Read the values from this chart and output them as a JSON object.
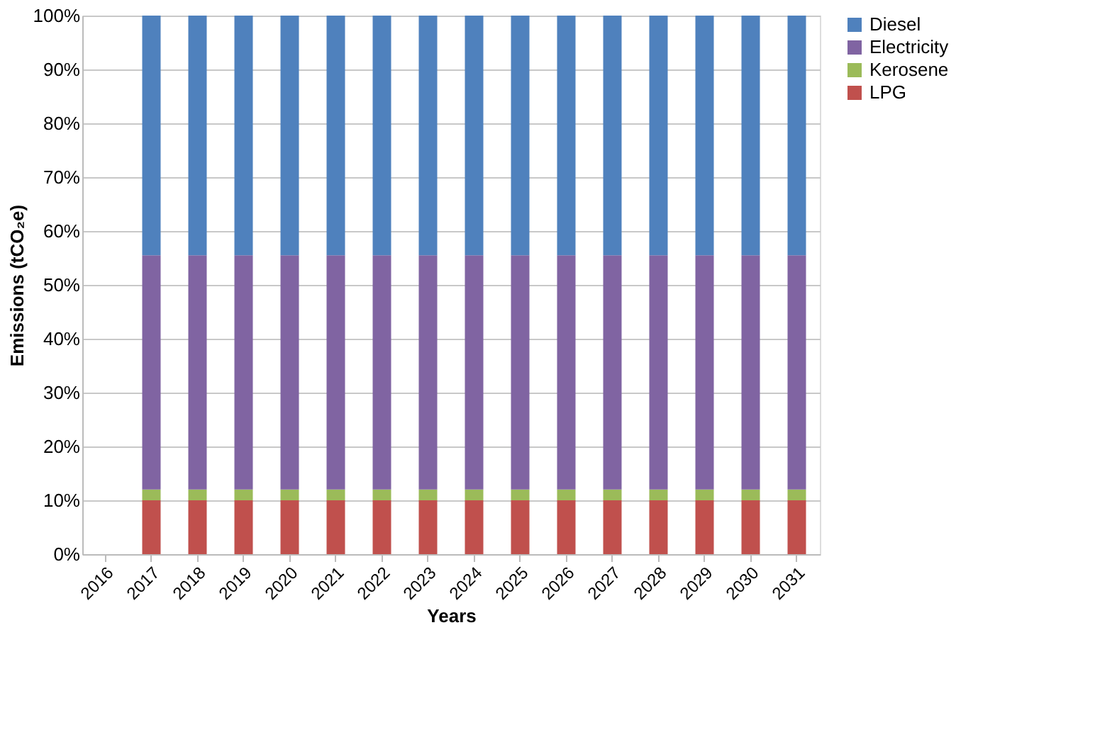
{
  "chart_data": {
    "type": "bar",
    "stacked": true,
    "xlabel": "Years",
    "ylabel": "Emissions (tCO₂e)",
    "categories": [
      "2016",
      "2017",
      "2018",
      "2019",
      "2020",
      "2021",
      "2022",
      "2023",
      "2024",
      "2025",
      "2026",
      "2027",
      "2028",
      "2029",
      "2030",
      "2031"
    ],
    "series": [
      {
        "name": "LPG",
        "color": "#c0504d",
        "values": [
          null,
          10,
          10,
          10,
          10,
          10,
          10,
          10,
          10,
          10,
          10,
          10,
          10,
          10,
          10,
          10
        ]
      },
      {
        "name": "Kerosene",
        "color": "#9bbb59",
        "values": [
          null,
          2,
          2,
          2,
          2,
          2,
          2,
          2,
          2,
          2,
          2,
          2,
          2,
          2,
          2,
          2
        ]
      },
      {
        "name": "Electricity",
        "color": "#8064a2",
        "values": [
          null,
          43.5,
          43.5,
          43.5,
          43.5,
          43.5,
          43.5,
          43.5,
          43.5,
          43.5,
          43.5,
          43.5,
          43.5,
          43.5,
          43.5,
          43.5
        ]
      },
      {
        "name": "Diesel",
        "color": "#4f81bd",
        "values": [
          null,
          44.5,
          44.5,
          44.5,
          44.5,
          44.5,
          44.5,
          44.5,
          44.5,
          44.5,
          44.5,
          44.5,
          44.5,
          44.5,
          44.5,
          44.5
        ]
      }
    ],
    "ylim": [
      0,
      100
    ],
    "yticks": [
      {
        "value": 0,
        "label": "0%"
      },
      {
        "value": 10,
        "label": "10%"
      },
      {
        "value": 20,
        "label": "20%"
      },
      {
        "value": 30,
        "label": "30%"
      },
      {
        "value": 40,
        "label": "40%"
      },
      {
        "value": 50,
        "label": "50%"
      },
      {
        "value": 60,
        "label": "60%"
      },
      {
        "value": 70,
        "label": "70%"
      },
      {
        "value": 80,
        "label": "80%"
      },
      {
        "value": 90,
        "label": "90%"
      },
      {
        "value": 100,
        "label": "100%"
      }
    ],
    "grid": "y",
    "legend": "right"
  }
}
